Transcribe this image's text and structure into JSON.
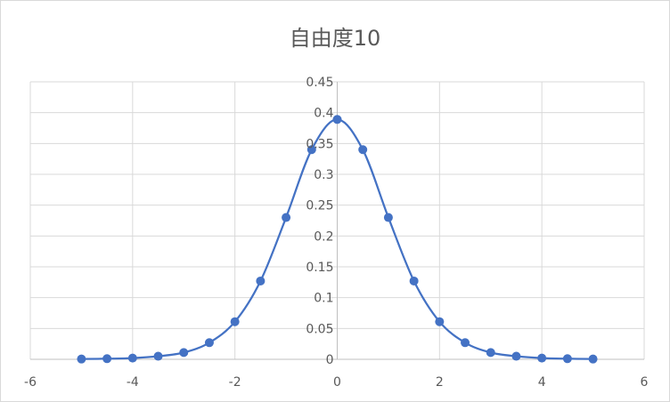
{
  "chart_data": {
    "type": "scatter",
    "title": "自由度10",
    "xlabel": "",
    "ylabel": "",
    "xlim": [
      -6,
      6
    ],
    "ylim": [
      0,
      0.45
    ],
    "xticks": [
      -6,
      -4,
      -2,
      0,
      2,
      4,
      6
    ],
    "yticks": [
      0,
      0.05,
      0.1,
      0.15,
      0.2,
      0.25,
      0.3,
      0.35,
      0.4,
      0.45
    ],
    "xtick_labels": [
      "-6",
      "-4",
      "-2",
      "0",
      "2",
      "4",
      "6"
    ],
    "ytick_labels": [
      "0",
      "0.05",
      "0.1",
      "0.15",
      "0.2",
      "0.25",
      "0.3",
      "0.35",
      "0.4",
      "0.45"
    ],
    "grid": true,
    "smooth_line": true,
    "series_color": "#4472c4",
    "series": [
      {
        "x": [
          -5,
          -4.5,
          -4,
          -3.5,
          -3,
          -2.5,
          -2,
          -1.5,
          -1,
          -0.5,
          0,
          0.5,
          1,
          1.5,
          2,
          2.5,
          3,
          3.5,
          4,
          4.5,
          5
        ],
        "y": [
          0.0005,
          0.001,
          0.002,
          0.005,
          0.011,
          0.027,
          0.061,
          0.127,
          0.23,
          0.34,
          0.389,
          0.34,
          0.23,
          0.127,
          0.061,
          0.027,
          0.011,
          0.005,
          0.002,
          0.001,
          0.0005
        ]
      }
    ]
  }
}
